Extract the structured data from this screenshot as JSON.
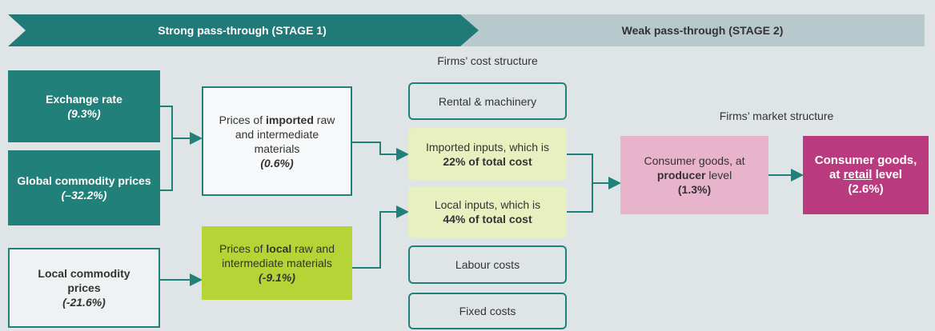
{
  "stages": [
    "Strong pass-through (STAGE 1)",
    "Weak pass-through (STAGE 2)"
  ],
  "headings": {
    "cost_structure": "Firms’ cost structure",
    "market_structure": "Firms’ market structure"
  },
  "drivers": [
    {
      "label": [
        "Exchange rate"
      ],
      "value": "(9.3%)"
    },
    {
      "label": [
        "Global commodity prices"
      ],
      "value": "(–32.2%)"
    },
    {
      "label": [
        "Local commodity prices"
      ],
      "value": "(-21.6%)"
    }
  ],
  "materials": [
    {
      "label": [
        "Prices of ",
        "imported",
        " raw and intermediate materials"
      ],
      "value": "(0.6%)"
    },
    {
      "label": [
        "Prices of ",
        "local",
        " raw and intermediate materials"
      ],
      "value": "(-9.1%)"
    }
  ],
  "cost_items": [
    {
      "label": [
        "Rental & machinery"
      ]
    },
    {
      "label": [
        "Imported inputs, which is ",
        "22% of total cost"
      ]
    },
    {
      "label": [
        "Local inputs, which is ",
        "44% of total cost"
      ]
    },
    {
      "label": [
        "Labour costs"
      ]
    },
    {
      "label": [
        "Fixed costs"
      ]
    }
  ],
  "consumer_goods": [
    {
      "label": [
        "Consumer goods, at ",
        "producer",
        " level"
      ],
      "value": "(1.3%)"
    },
    {
      "label": [
        "Consumer goods, at ",
        "retail",
        " level"
      ],
      "value": "(2.6%)"
    }
  ]
}
